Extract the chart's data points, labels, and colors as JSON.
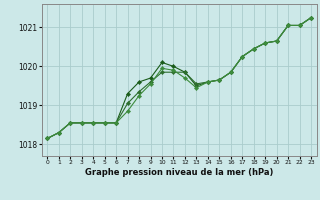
{
  "xlabel": "Graphe pression niveau de la mer (hPa)",
  "background_color": "#cce8e8",
  "grid_color": "#aacccc",
  "line_color1": "#1a5c1a",
  "line_color2": "#2d6e2d",
  "line_color3": "#3d8c3d",
  "ylim": [
    1017.7,
    1021.6
  ],
  "yticks": [
    1018,
    1019,
    1020,
    1021
  ],
  "xticks": [
    0,
    1,
    2,
    3,
    4,
    5,
    6,
    7,
    8,
    9,
    10,
    11,
    12,
    13,
    14,
    15,
    16,
    17,
    18,
    19,
    20,
    21,
    22,
    23
  ],
  "series1": [
    1018.15,
    1018.3,
    1018.55,
    1018.55,
    1018.55,
    1018.55,
    1018.55,
    1019.3,
    1019.6,
    1019.7,
    1020.1,
    1020.0,
    1019.85,
    1019.5,
    1019.6,
    1019.65,
    1019.85,
    1020.25,
    1020.45,
    1020.6,
    1020.65,
    1021.05,
    1021.05,
    1021.25
  ],
  "series2": [
    1018.15,
    1018.3,
    1018.55,
    1018.55,
    1018.55,
    1018.55,
    1018.55,
    1019.05,
    1019.35,
    1019.6,
    1019.85,
    1019.85,
    1019.85,
    1019.55,
    1019.6,
    1019.65,
    1019.85,
    1020.25,
    1020.45,
    1020.6,
    1020.65,
    1021.05,
    1021.05,
    1021.25
  ],
  "series3": [
    1018.15,
    1018.3,
    1018.55,
    1018.55,
    1018.55,
    1018.55,
    1018.55,
    1018.85,
    1019.25,
    1019.55,
    1019.95,
    1019.9,
    1019.7,
    1019.45,
    1019.6,
    1019.65,
    1019.85,
    1020.25,
    1020.45,
    1020.6,
    1020.65,
    1021.05,
    1021.05,
    1021.25
  ]
}
